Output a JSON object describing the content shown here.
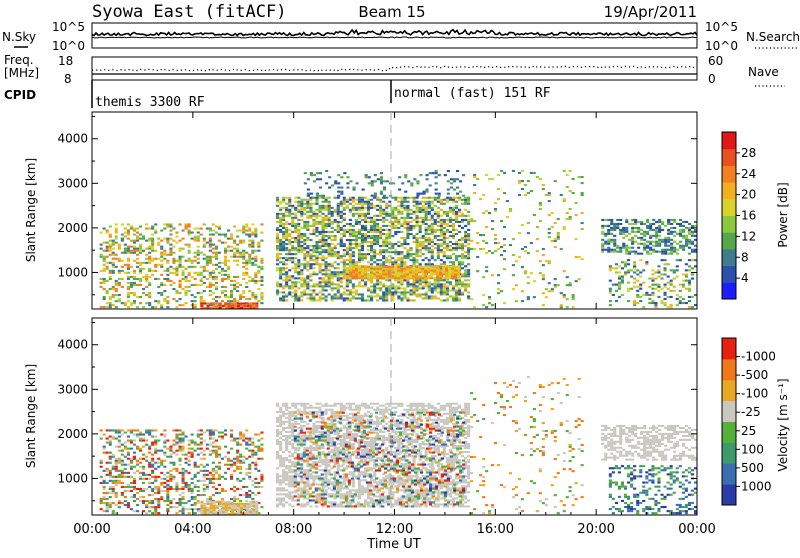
{
  "header": {
    "station": "Syowa East (fitACF)",
    "beam": "Beam 15",
    "date": "19/Apr/2011"
  },
  "top_panels": {
    "nsky_label": "N.Sky",
    "nsearch_label": "N.Search",
    "noise_ticks_left": [
      "10^5",
      "10^0"
    ],
    "noise_ticks_right": [
      "10^5",
      "10^0"
    ],
    "freq_label_1": "Freq.",
    "freq_label_2": "[MHz]",
    "freq_ticks": [
      "18",
      "8"
    ],
    "nave_label": "Nave",
    "nave_ticks": [
      "60",
      "0"
    ],
    "cpid_label": "CPID",
    "cpid_segments": [
      "themis 3300 RF",
      "normal (fast) 151 RF"
    ]
  },
  "chart_data": [
    {
      "type": "heatmap",
      "title": "",
      "ylabel": "Slant Range [km]",
      "xlabel": "",
      "y_ticks": [
        "1000",
        "2000",
        "3000",
        "4000"
      ],
      "ylim": [
        180,
        4600
      ],
      "x_range_hours": [
        0,
        24
      ],
      "colorbar_label": "Power [dB]",
      "colorbar_ticks": [
        "4",
        "8",
        "12",
        "16",
        "20",
        "24",
        "28"
      ],
      "colorbar_colors": [
        "#1c1cff",
        "#2c4fb0",
        "#3d7d8e",
        "#55a84a",
        "#8cc83c",
        "#d8d22a",
        "#f2b020",
        "#f08020",
        "#e85020",
        "#e01818"
      ],
      "scatter_regions": [
        {
          "t0": 0.3,
          "t1": 6.8,
          "r0": 200,
          "r1": 2100,
          "density": 0.35,
          "c": [
            2,
            7
          ]
        },
        {
          "t0": 4.3,
          "t1": 6.6,
          "r0": 180,
          "r1": 330,
          "density": 0.95,
          "c": [
            7,
            9
          ]
        },
        {
          "t0": 7.3,
          "t1": 15.0,
          "r0": 350,
          "r1": 2700,
          "density": 0.6,
          "c": [
            1,
            6
          ]
        },
        {
          "t0": 10.2,
          "t1": 14.6,
          "r0": 850,
          "r1": 1150,
          "density": 0.9,
          "c": [
            5,
            7
          ]
        },
        {
          "t0": 8.4,
          "t1": 14.8,
          "r0": 2700,
          "r1": 3300,
          "density": 0.18,
          "c": [
            1,
            3
          ]
        },
        {
          "t0": 15.0,
          "t1": 19.5,
          "r0": 200,
          "r1": 3300,
          "density": 0.08,
          "c": [
            2,
            6
          ]
        },
        {
          "t0": 20.2,
          "t1": 24.0,
          "r0": 1400,
          "r1": 2200,
          "density": 0.5,
          "c": [
            1,
            4
          ]
        },
        {
          "t0": 20.5,
          "t1": 24.0,
          "r0": 200,
          "r1": 1300,
          "density": 0.3,
          "c": [
            1,
            6
          ]
        }
      ]
    },
    {
      "type": "heatmap",
      "title": "",
      "ylabel": "Slant Range [km]",
      "xlabel": "Time UT",
      "x_ticks": [
        "00:00",
        "04:00",
        "08:00",
        "12:00",
        "16:00",
        "20:00",
        "00:00"
      ],
      "y_ticks": [
        "1000",
        "2000",
        "3000",
        "4000"
      ],
      "ylim": [
        180,
        4600
      ],
      "x_range_hours": [
        0,
        24
      ],
      "colorbar_label": "Velocity [m s⁻¹]",
      "colorbar_ticks": [
        "1000",
        "500",
        "100",
        "25",
        "-25",
        "-100",
        "-500",
        "-1000"
      ],
      "colorbar_colors": [
        "#2a3aa8",
        "#3a70b0",
        "#3e9a6a",
        "#55b03a",
        "#c8c8c0",
        "#e8a820",
        "#f07818",
        "#e82010"
      ],
      "scatter_regions": [
        {
          "t0": 0.3,
          "t1": 6.8,
          "r0": 200,
          "r1": 2100,
          "density": 0.35,
          "c": [
            1,
            7
          ]
        },
        {
          "t0": 4.3,
          "t1": 6.6,
          "r0": 180,
          "r1": 500,
          "density": 0.9,
          "c": [
            4,
            5
          ]
        },
        {
          "t0": 7.3,
          "t1": 15.0,
          "r0": 350,
          "r1": 2700,
          "density": 0.6,
          "c": [
            4,
            4
          ]
        },
        {
          "t0": 8.0,
          "t1": 14.8,
          "r0": 350,
          "r1": 2500,
          "density": 0.25,
          "c": [
            0,
            7
          ]
        },
        {
          "t0": 15.0,
          "t1": 19.5,
          "r0": 200,
          "r1": 3300,
          "density": 0.06,
          "c": [
            3,
            6
          ]
        },
        {
          "t0": 20.2,
          "t1": 24.0,
          "r0": 1400,
          "r1": 2200,
          "density": 0.5,
          "c": [
            4,
            4
          ]
        },
        {
          "t0": 20.5,
          "t1": 24.0,
          "r0": 200,
          "r1": 1300,
          "density": 0.3,
          "c": [
            0,
            3
          ]
        }
      ]
    }
  ]
}
